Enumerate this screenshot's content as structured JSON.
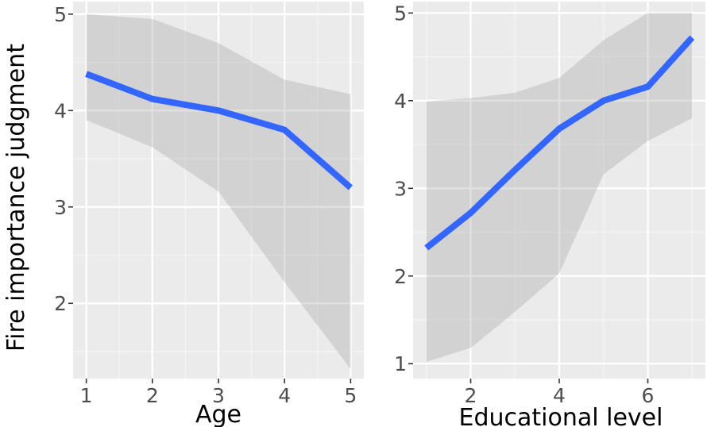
{
  "ylabel": "Fire importance judgment",
  "chart_data": [
    {
      "type": "line",
      "title": "",
      "xlabel": "Age",
      "ylabel": "Fire importance judgment",
      "xlim": [
        0.8,
        5.2
      ],
      "ylim": [
        1.22,
        5.13
      ],
      "x_ticks": [
        1,
        2,
        3,
        4,
        5
      ],
      "x_tick_labels": [
        "1",
        "2",
        "3",
        "4",
        "5"
      ],
      "y_ticks": [
        2,
        3,
        4,
        5
      ],
      "y_tick_labels": [
        "2",
        "3",
        "4",
        "5"
      ],
      "grid": true,
      "x": [
        1,
        2,
        3,
        4,
        5
      ],
      "y": [
        4.38,
        4.12,
        4.0,
        3.8,
        3.2
      ],
      "ci_upper": [
        5.0,
        4.95,
        4.7,
        4.32,
        4.17
      ],
      "ci_lower": [
        3.9,
        3.62,
        3.16,
        2.22,
        1.32
      ],
      "line_color": "#3366FF",
      "band_color": "#d3d3d3",
      "panel_bg": "#ebebeb"
    },
    {
      "type": "line",
      "title": "",
      "xlabel": "Educational level",
      "ylabel": "",
      "xlim": [
        0.7,
        7.3
      ],
      "ylim": [
        0.83,
        5.13
      ],
      "x_ticks": [
        2,
        4,
        6
      ],
      "x_tick_labels": [
        "2",
        "4",
        "6"
      ],
      "y_ticks": [
        1,
        2,
        3,
        4,
        5
      ],
      "y_tick_labels": [
        "1",
        "2",
        "3",
        "4",
        "5"
      ],
      "grid": true,
      "x": [
        1,
        2,
        3,
        4,
        5,
        6,
        7
      ],
      "y": [
        2.32,
        2.72,
        3.21,
        3.68,
        4.0,
        4.16,
        4.72
      ],
      "ci_upper": [
        3.99,
        4.03,
        4.09,
        4.26,
        4.69,
        5.0,
        5.0
      ],
      "ci_lower": [
        1.02,
        1.18,
        1.59,
        2.03,
        3.16,
        3.54,
        3.8
      ],
      "line_color": "#3366FF",
      "band_color": "#d3d3d3",
      "panel_bg": "#ebebeb"
    }
  ]
}
